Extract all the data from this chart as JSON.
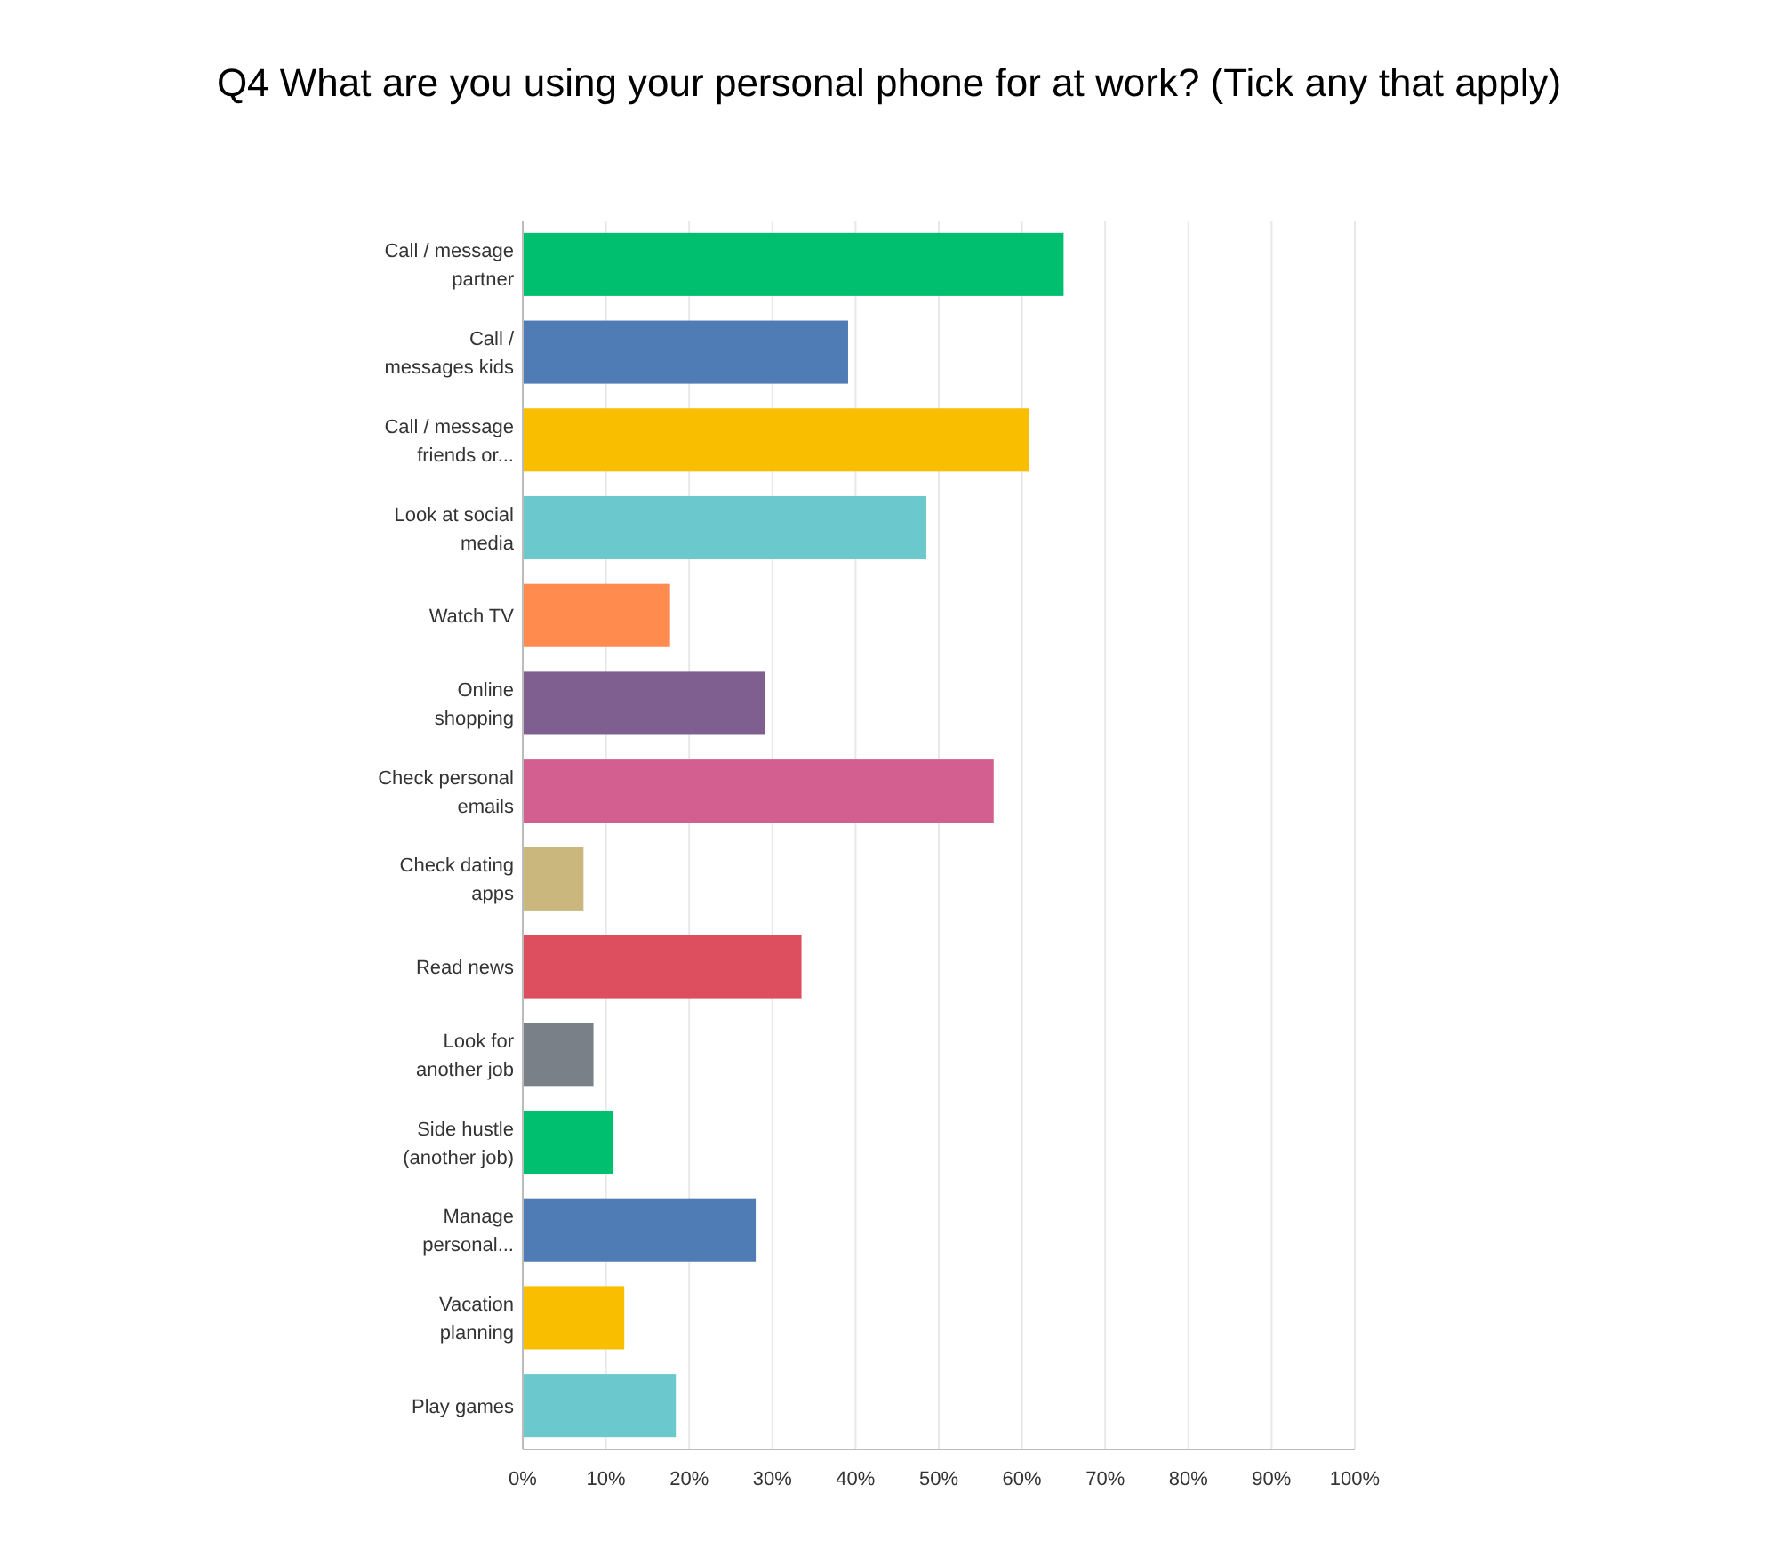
{
  "chart_data": {
    "type": "bar",
    "orientation": "horizontal",
    "title": "Q4 What are you using your personal phone for at work? (Tick any that apply)",
    "categories": [
      "Call / message partner",
      "Call / messages kids",
      "Call / message friends or...",
      "Look at social media",
      "Watch TV",
      "Online shopping",
      "Check personal emails",
      "Check dating apps",
      "Read news",
      "Look for another job",
      "Side hustle (another job)",
      "Manage personal...",
      "Vacation planning",
      "Play games"
    ],
    "values": [
      65.0,
      39.1,
      60.9,
      48.5,
      17.7,
      29.1,
      56.6,
      7.3,
      33.5,
      8.5,
      10.9,
      28.0,
      12.2,
      18.4
    ],
    "colors": [
      "#00bf6f",
      "#507cb6",
      "#f9be00",
      "#6bc8cd",
      "#ff8b4f",
      "#7f5f90",
      "#d25f90",
      "#c9b77d",
      "#dd4f5e",
      "#7a8088",
      "#00bf6f",
      "#507cb6",
      "#f9be00",
      "#6bc8cd"
    ],
    "xlim": [
      0,
      100
    ],
    "xticks": [
      {
        "value": 0,
        "label": "0%"
      },
      {
        "value": 10,
        "label": "10%"
      },
      {
        "value": 20,
        "label": "20%"
      },
      {
        "value": 30,
        "label": "30%"
      },
      {
        "value": 40,
        "label": "40%"
      },
      {
        "value": 50,
        "label": "50%"
      },
      {
        "value": 60,
        "label": "60%"
      },
      {
        "value": 70,
        "label": "70%"
      },
      {
        "value": 80,
        "label": "80%"
      },
      {
        "value": 90,
        "label": "90%"
      },
      {
        "value": 100,
        "label": "100%"
      }
    ],
    "grid": "x"
  }
}
